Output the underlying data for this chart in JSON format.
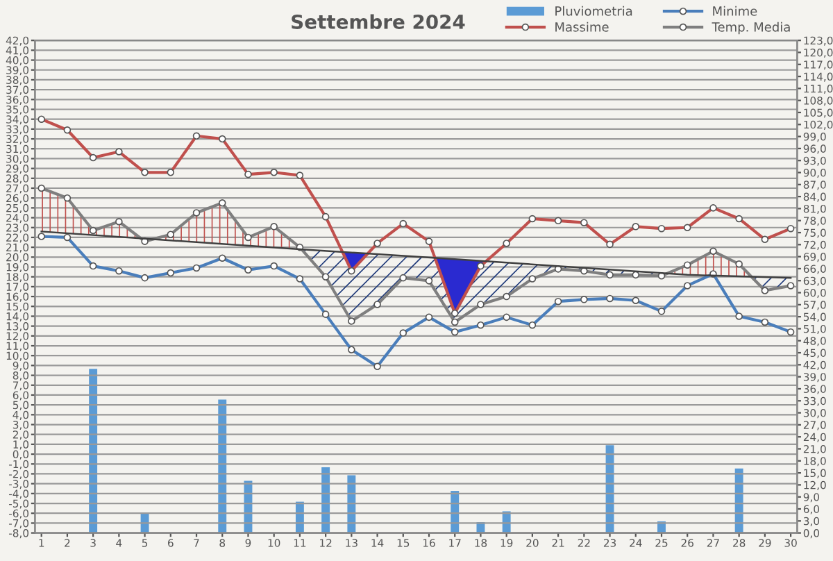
{
  "chart_data": {
    "type": "line",
    "title": "Settembre 2024",
    "categories": [
      "1",
      "2",
      "3",
      "4",
      "5",
      "6",
      "7",
      "8",
      "9",
      "10",
      "11",
      "12",
      "13",
      "14",
      "15",
      "16",
      "17",
      "18",
      "19",
      "20",
      "21",
      "22",
      "23",
      "24",
      "25",
      "26",
      "27",
      "28",
      "29",
      "30"
    ],
    "series": [
      {
        "name": "Pluviometria",
        "type": "bar",
        "axis": "y2",
        "color": "#5b9bd5",
        "values": [
          null,
          null,
          41.0,
          null,
          5.1,
          null,
          null,
          33.3,
          13.0,
          null,
          7.8,
          16.4,
          14.4,
          null,
          null,
          null,
          10.5,
          2.7,
          5.4,
          null,
          null,
          null,
          21.9,
          null,
          2.9,
          null,
          null,
          16.1,
          null,
          null
        ]
      },
      {
        "name": "Massime",
        "color": "#c0504d",
        "values": [
          34.0,
          32.9,
          30.1,
          30.7,
          28.6,
          28.6,
          32.3,
          32.0,
          28.4,
          28.6,
          28.3,
          24.1,
          18.6,
          21.4,
          23.4,
          21.6,
          14.3,
          19.1,
          21.4,
          23.9,
          23.7,
          23.5,
          21.3,
          23.1,
          22.9,
          23.0,
          25.0,
          23.9,
          21.8,
          22.9
        ]
      },
      {
        "name": "Minime",
        "color": "#4a7ebb",
        "values": [
          22.1,
          22.0,
          19.1,
          18.6,
          17.9,
          18.4,
          18.9,
          19.9,
          18.7,
          19.1,
          17.8,
          14.2,
          10.6,
          8.9,
          12.3,
          13.9,
          12.4,
          13.1,
          13.9,
          13.1,
          15.5,
          15.7,
          15.8,
          15.6,
          14.5,
          17.1,
          18.3,
          14.0,
          13.4,
          12.4
        ]
      },
      {
        "name": "Temp. Media",
        "color": "#7f7f7f",
        "values": [
          27.0,
          26.0,
          22.7,
          23.6,
          21.6,
          22.3,
          24.5,
          25.5,
          22.0,
          23.1,
          21.0,
          18.0,
          13.5,
          15.2,
          17.9,
          17.6,
          13.4,
          15.2,
          16.0,
          17.8,
          18.8,
          18.6,
          18.2,
          18.2,
          18.1,
          19.2,
          20.6,
          19.3,
          16.6,
          17.1
        ]
      },
      {
        "color": "#404040",
        "marker": "none",
        "x": [
          "1",
          "11",
          "17",
          "26",
          "30"
        ],
        "values": [
          22.6,
          20.8,
          19.8,
          18.2,
          17.9
        ]
      }
    ],
    "marker": "circle",
    "line_style": "solid",
    "grid": "y",
    "legend": "top right",
    "ylim": [
      -8,
      42
    ],
    "yticks": [
      {
        "value": -8,
        "label": "-8,0"
      },
      {
        "value": -7,
        "label": "-7,0"
      },
      {
        "value": -6,
        "label": "-6,0"
      },
      {
        "value": -5,
        "label": "-5,0"
      },
      {
        "value": -4,
        "label": "-4,0"
      },
      {
        "value": -3,
        "label": "-3,0"
      },
      {
        "value": -2,
        "label": "-2,0"
      },
      {
        "value": -1,
        "label": "-1,0"
      },
      {
        "value": 0,
        "label": "0,0"
      },
      {
        "value": 1,
        "label": "1,0"
      },
      {
        "value": 2,
        "label": "2,0"
      },
      {
        "value": 3,
        "label": "3,0"
      },
      {
        "value": 4,
        "label": "4,0"
      },
      {
        "value": 5,
        "label": "5,0"
      },
      {
        "value": 6,
        "label": "6,0"
      },
      {
        "value": 7,
        "label": "7,0"
      },
      {
        "value": 8,
        "label": "8,0"
      },
      {
        "value": 9,
        "label": "9,0"
      },
      {
        "value": 10,
        "label": "10,0"
      },
      {
        "value": 11,
        "label": "11,0"
      },
      {
        "value": 12,
        "label": "12,0"
      },
      {
        "value": 13,
        "label": "13,0"
      },
      {
        "value": 14,
        "label": "14,0"
      },
      {
        "value": 15,
        "label": "15,0"
      },
      {
        "value": 16,
        "label": "16,0"
      },
      {
        "value": 17,
        "label": "17,0"
      },
      {
        "value": 18,
        "label": "18,0"
      },
      {
        "value": 19,
        "label": "19,0"
      },
      {
        "value": 20,
        "label": "20,0"
      },
      {
        "value": 21,
        "label": "21,0"
      },
      {
        "value": 22,
        "label": "22,0"
      },
      {
        "value": 23,
        "label": "23,0"
      },
      {
        "value": 24,
        "label": "24,0"
      },
      {
        "value": 25,
        "label": "25,0"
      },
      {
        "value": 26,
        "label": "26,0"
      },
      {
        "value": 27,
        "label": "27,0"
      },
      {
        "value": 28,
        "label": "28,0"
      },
      {
        "value": 29,
        "label": "29,0"
      },
      {
        "value": 30,
        "label": "30,0"
      },
      {
        "value": 31,
        "label": "31,0"
      },
      {
        "value": 32,
        "label": "32,0"
      },
      {
        "value": 33,
        "label": "33,0"
      },
      {
        "value": 34,
        "label": "34,0"
      },
      {
        "value": 35,
        "label": "35,0"
      },
      {
        "value": 36,
        "label": "36,0"
      },
      {
        "value": 37,
        "label": "37,0"
      },
      {
        "value": 38,
        "label": "38,0"
      },
      {
        "value": 39,
        "label": "39,0"
      },
      {
        "value": 40,
        "label": "40,0"
      },
      {
        "value": 41,
        "label": "41,0"
      },
      {
        "value": 42,
        "label": "42,0"
      }
    ],
    "y2lim": [
      0,
      123
    ],
    "y2ticks": [
      {
        "value": 0,
        "label": "0,0"
      },
      {
        "value": 3,
        "label": "3,0"
      },
      {
        "value": 6,
        "label": "6,0"
      },
      {
        "value": 9,
        "label": "9,0"
      },
      {
        "value": 12,
        "label": "12,0"
      },
      {
        "value": 15,
        "label": "15,0"
      },
      {
        "value": 18,
        "label": "18,0"
      },
      {
        "value": 21,
        "label": "21,0"
      },
      {
        "value": 24,
        "label": "24,0"
      },
      {
        "value": 27,
        "label": "27,0"
      },
      {
        "value": 30,
        "label": "30,0"
      },
      {
        "value": 33,
        "label": "33,0"
      },
      {
        "value": 36,
        "label": "36,0"
      },
      {
        "value": 39,
        "label": "39,0"
      },
      {
        "value": 42,
        "label": "42,0"
      },
      {
        "value": 45,
        "label": "45,0"
      },
      {
        "value": 48,
        "label": "48,0"
      },
      {
        "value": 51,
        "label": "51,0"
      },
      {
        "value": 54,
        "label": "54,0"
      },
      {
        "value": 57,
        "label": "57,0"
      },
      {
        "value": 60,
        "label": "60,0"
      },
      {
        "value": 63,
        "label": "63,0"
      },
      {
        "value": 66,
        "label": "66,0"
      },
      {
        "value": 69,
        "label": "69,0"
      },
      {
        "value": 72,
        "label": "72,0"
      },
      {
        "value": 75,
        "label": "75,0"
      },
      {
        "value": 78,
        "label": "78,0"
      },
      {
        "value": 81,
        "label": "81,0"
      },
      {
        "value": 84,
        "label": "84,0"
      },
      {
        "value": 87,
        "label": "87,0"
      },
      {
        "value": 90,
        "label": "90,0"
      },
      {
        "value": 93,
        "label": "93,0"
      },
      {
        "value": 96,
        "label": "96,0"
      },
      {
        "value": 99,
        "label": "99,0"
      },
      {
        "value": 102,
        "label": "102,0"
      },
      {
        "value": 105,
        "label": "105,0"
      },
      {
        "value": 108,
        "label": "108,0"
      },
      {
        "value": 111,
        "label": "111,0"
      },
      {
        "value": 114,
        "label": "114,0"
      },
      {
        "value": 117,
        "label": "117,0"
      },
      {
        "value": 120,
        "label": "120,0"
      },
      {
        "value": 123,
        "label": "123,0"
      }
    ]
  }
}
